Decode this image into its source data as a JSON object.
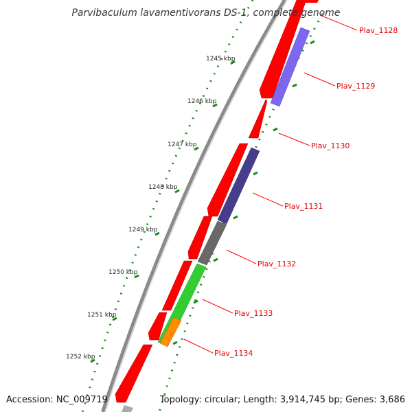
{
  "title": "Parvibaculum lavamentivorans DS-1, complete genome",
  "accession": "Accession: NC_009719",
  "topology": "Topology: circular; Length: 3,914,745 bp; Genes: 3,686",
  "ruler": [
    "1245 kbp",
    "1246 kbp",
    "1247 kbp",
    "1248 kbp",
    "1249 kbp",
    "1250 kbp",
    "1251 kbp",
    "1252 kbp"
  ],
  "genes": [
    {
      "label": "Plav_1128",
      "color": "#ff0000"
    },
    {
      "label": "Plav_1129",
      "color": "#7b68ee"
    },
    {
      "label": "Plav_1130",
      "color": "#ff0000"
    },
    {
      "label": "Plav_1131",
      "color": "#483d8b"
    },
    {
      "label": "Plav_1132",
      "color": "#696969"
    },
    {
      "label": "Plav_1133",
      "color": "#32cd32"
    },
    {
      "label": "Plav_1134",
      "color": "#ff8c00"
    }
  ],
  "colors": {
    "forward_strand": "#ff0000",
    "backbone": "#808080",
    "ticks": "#006400",
    "label_line": "#ff0000"
  }
}
